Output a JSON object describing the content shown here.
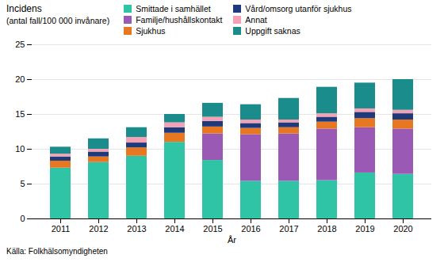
{
  "chart_data": {
    "type": "bar",
    "stacked": true,
    "xlabel": "År",
    "ylabel": "Incidens",
    "annotations": [
      "(antal fall/100 000 invånare)",
      "Källa: Folkhälsomyndigheten"
    ],
    "categories": [
      "2011",
      "2012",
      "2013",
      "2014",
      "2015",
      "2016",
      "2017",
      "2018",
      "2019",
      "2020"
    ],
    "series": [
      {
        "name": "Smittade i samhället",
        "color": "#2EC4A5",
        "values": [
          7.3,
          8.1,
          9.0,
          11.0,
          8.4,
          5.4,
          5.4,
          5.5,
          6.6,
          6.4
        ]
      },
      {
        "name": "Familje/hushållskontakt",
        "color": "#9B59B6",
        "values": [
          0.0,
          0.0,
          0.0,
          0.0,
          3.8,
          6.7,
          6.8,
          7.4,
          6.5,
          6.5
        ]
      },
      {
        "name": "Sjukhus",
        "color": "#E87722",
        "values": [
          1.0,
          0.8,
          1.2,
          1.3,
          1.0,
          0.9,
          0.9,
          1.0,
          1.3,
          1.3
        ]
      },
      {
        "name": "Vård/omsorg utanför sjukhus",
        "color": "#1F3A7A",
        "values": [
          0.6,
          0.7,
          0.7,
          0.8,
          0.8,
          0.7,
          0.7,
          0.7,
          0.9,
          0.9
        ]
      },
      {
        "name": "Annat",
        "color": "#F4A0B5",
        "values": [
          0.4,
          0.4,
          0.8,
          0.7,
          0.6,
          0.5,
          0.4,
          0.5,
          0.5,
          0.5
        ]
      },
      {
        "name": "Uppgift saknas",
        "color": "#1A8C8C",
        "values": [
          1.0,
          1.5,
          1.4,
          1.2,
          2.0,
          2.2,
          3.1,
          3.8,
          3.7,
          4.4
        ]
      }
    ],
    "ylim": [
      0,
      25
    ],
    "yticks": [
      0,
      5,
      10,
      15,
      20,
      25
    ],
    "grid": true,
    "legend": "top"
  }
}
